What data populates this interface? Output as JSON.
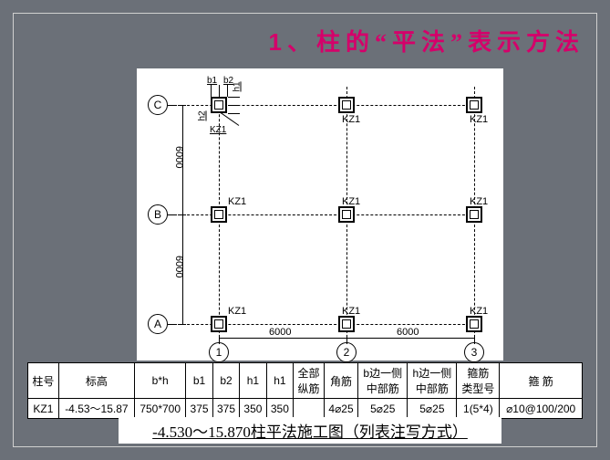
{
  "title": {
    "num": "1、",
    "text": "柱的“平法”表示方法"
  },
  "diagram": {
    "col_label": "KZ1",
    "detail_labels": {
      "b1": "b1",
      "b2": "b2",
      "h1": "h1",
      "h2": "h2",
      "kz1": "KZ1"
    },
    "axes": {
      "rows": [
        "C",
        "B",
        "A"
      ],
      "cols": [
        "1",
        "2",
        "3"
      ]
    },
    "dims": {
      "h_span": "6000",
      "v_span": "6000"
    }
  },
  "table": {
    "headers": [
      "柱号",
      "标高",
      "b*h",
      "b1",
      "b2",
      "h1",
      "h1",
      "全部\n纵筋",
      "角筋",
      "b边一侧\n中部筋",
      "h边一侧\n中部筋",
      "箍筋\n类型号",
      "箍 筋"
    ],
    "row": [
      "KZ1",
      "-4.53～15.87",
      "750*700",
      "375",
      "375",
      "350",
      "350",
      "",
      "4⌀25",
      "5⌀25",
      "5⌀25",
      "1(5*4)",
      "⌀10@100/200"
    ]
  },
  "caption": "-4.530～15.870柱平法施工图（列表注写方式）"
}
